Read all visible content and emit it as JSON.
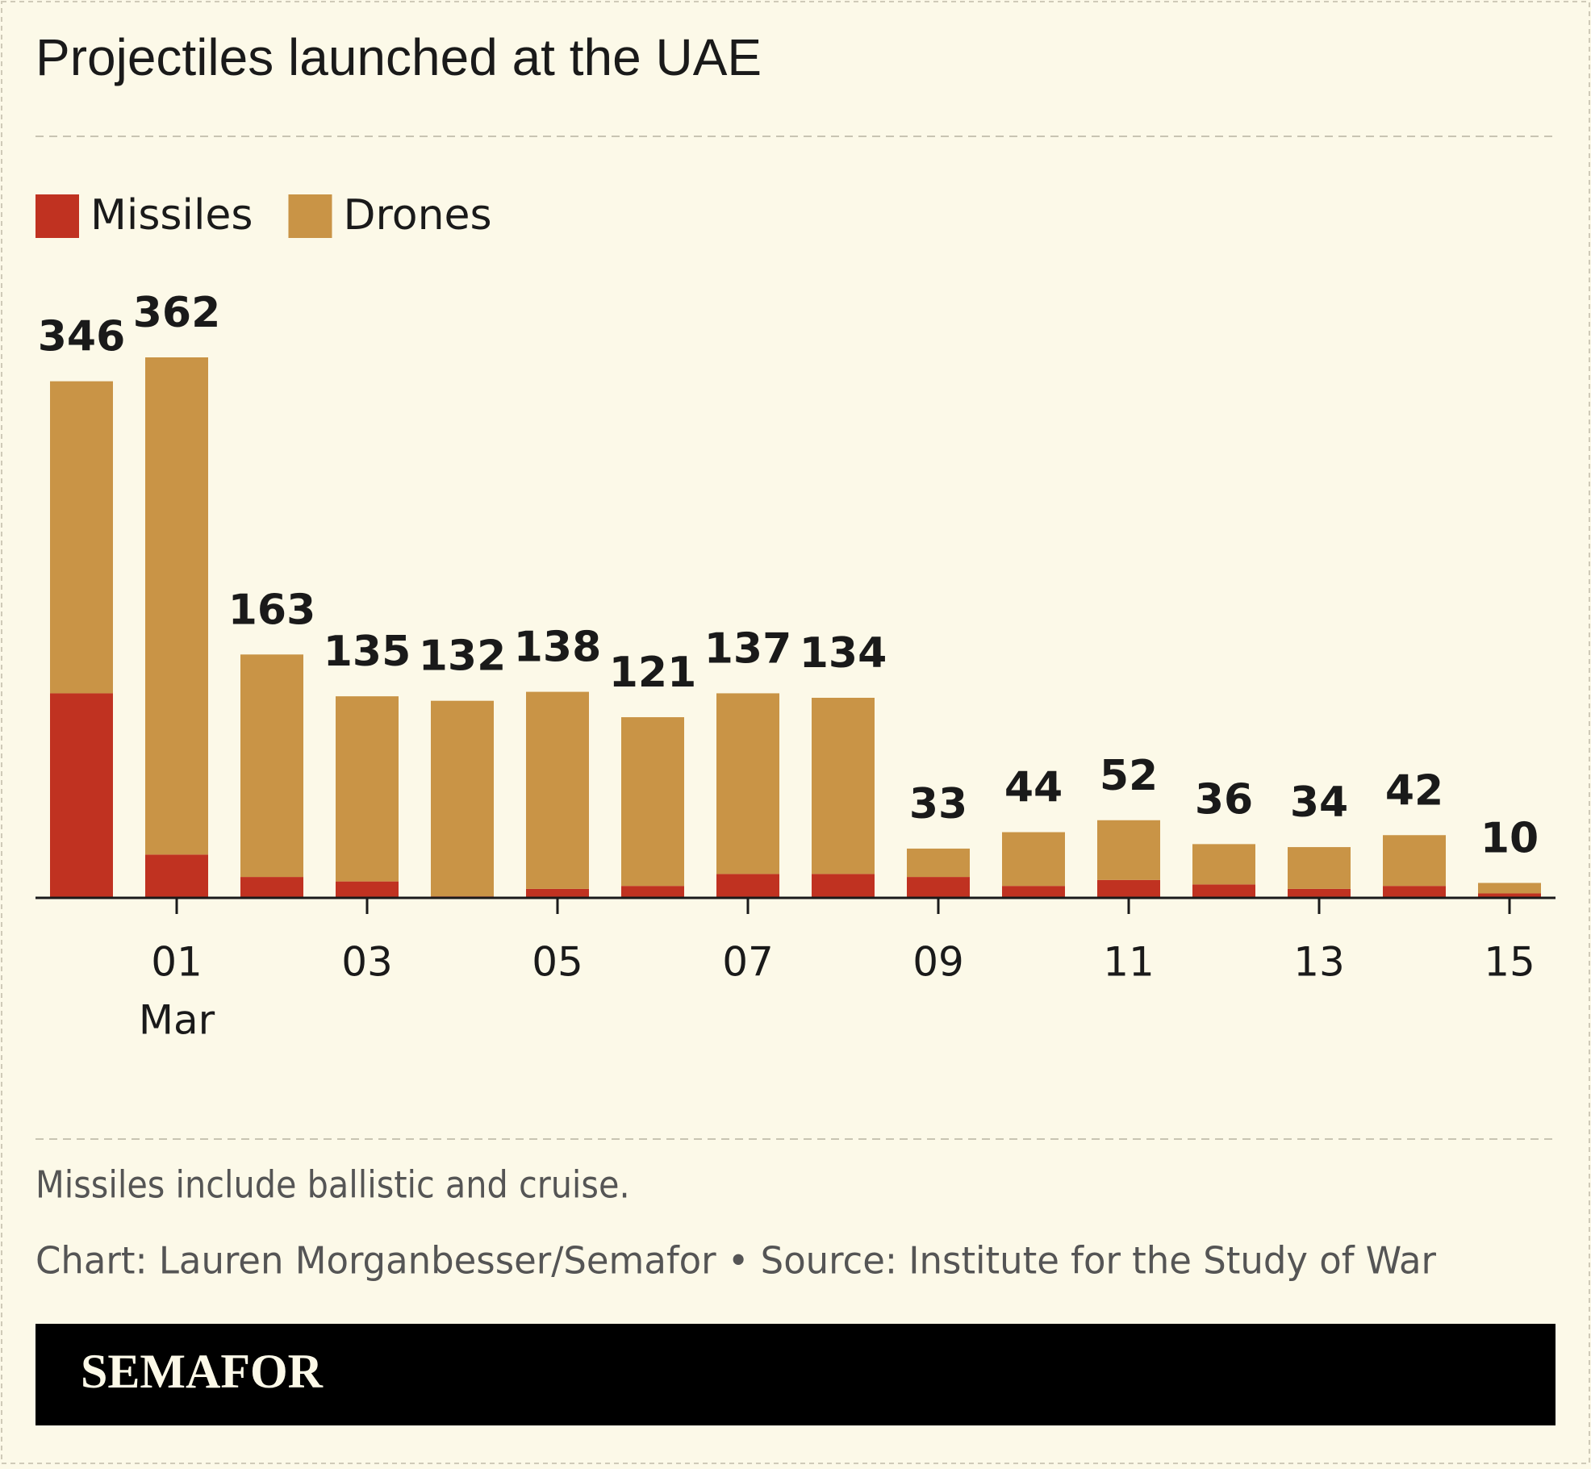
{
  "chart_data": {
    "type": "stacked-bar",
    "title": "Projectiles launched at the UAE",
    "categories": [
      null,
      "01",
      null,
      "03",
      null,
      "05",
      null,
      "07",
      null,
      "09",
      null,
      "11",
      null,
      "13",
      null,
      "15"
    ],
    "month_label": "Mar",
    "series": [
      {
        "name": "Missiles",
        "color": "#c03221",
        "values": [
          137,
          29,
          14,
          11,
          1,
          6,
          8,
          16,
          16,
          14,
          8,
          12,
          9,
          6,
          8,
          3
        ]
      },
      {
        "name": "Drones",
        "color": "#c99446",
        "values": [
          209,
          333,
          149,
          124,
          131,
          132,
          113,
          121,
          118,
          19,
          36,
          40,
          27,
          28,
          34,
          7
        ]
      }
    ],
    "totals": [
      346,
      362,
      163,
      135,
      132,
      138,
      121,
      137,
      134,
      33,
      44,
      52,
      36,
      34,
      42,
      10
    ],
    "legend": "top-left"
  },
  "footer": {
    "note": "Missiles include ballistic and cruise.",
    "credit": "Chart: Lauren Morganbesser/Semafor • Source: Institute for the Study of War",
    "logo": "SEMAFOR"
  }
}
